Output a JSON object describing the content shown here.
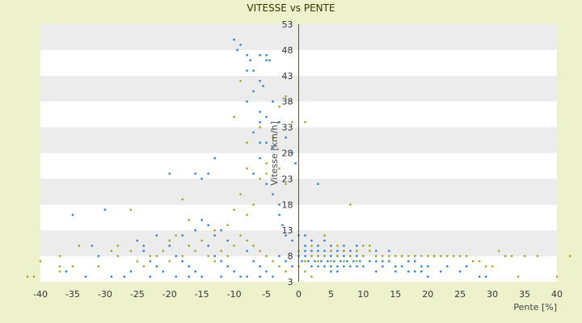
{
  "chart_data": {
    "type": "scatter",
    "title": "VITESSE vs PENTE",
    "xlabel": "Pente [%]",
    "ylabel": "Vitesse [km/h]",
    "xlim": [
      -40,
      40
    ],
    "ylim": [
      3,
      53
    ],
    "x_ticks": [
      -40,
      -35,
      -30,
      -25,
      -20,
      -15,
      -10,
      -5,
      0,
      5,
      10,
      15,
      20,
      25,
      30,
      35,
      40
    ],
    "y_ticks": [
      3,
      8,
      13,
      18,
      23,
      28,
      33,
      38,
      43,
      48,
      53
    ],
    "grid": "alternating horizontal bands",
    "legend": "none",
    "series": [
      {
        "color": "#2a7fd4",
        "points": [
          [
            -10,
            50
          ],
          [
            -9,
            49
          ],
          [
            -9.5,
            48
          ],
          [
            -8,
            47
          ],
          [
            -8,
            44
          ],
          [
            -7.5,
            46
          ],
          [
            -7,
            44
          ],
          [
            -6,
            47
          ],
          [
            -5,
            47
          ],
          [
            -5,
            46
          ],
          [
            -4.5,
            46
          ],
          [
            -6,
            42
          ],
          [
            -5.5,
            41
          ],
          [
            -7,
            40
          ],
          [
            -8,
            38
          ],
          [
            -6,
            36
          ],
          [
            -5,
            35
          ],
          [
            -6,
            34
          ],
          [
            -7,
            32
          ],
          [
            -5,
            30
          ],
          [
            -4,
            29
          ],
          [
            -6,
            27
          ],
          [
            -7,
            24
          ],
          [
            -5,
            22
          ],
          [
            -4,
            20
          ],
          [
            -3,
            18
          ],
          [
            -3,
            16
          ],
          [
            -2.5,
            14
          ],
          [
            -2,
            12
          ],
          [
            -1,
            11
          ],
          [
            -6,
            30
          ],
          [
            -4,
            38
          ],
          [
            -3,
            34
          ],
          [
            -2,
            31
          ],
          [
            -1,
            28
          ],
          [
            -0.5,
            26
          ],
          [
            -13,
            27
          ],
          [
            -16,
            24
          ],
          [
            -15,
            23
          ],
          [
            -14,
            24
          ],
          [
            -20,
            24
          ],
          [
            -35,
            16
          ],
          [
            -30,
            17
          ],
          [
            -32,
            10
          ],
          [
            -31,
            8
          ],
          [
            -36,
            5
          ],
          [
            -33,
            4
          ],
          [
            -25,
            11
          ],
          [
            -24,
            9
          ],
          [
            -23,
            7
          ],
          [
            -22,
            6
          ],
          [
            -21,
            5
          ],
          [
            -20,
            10
          ],
          [
            -19,
            8
          ],
          [
            -18,
            7
          ],
          [
            -17,
            6
          ],
          [
            -16,
            5
          ],
          [
            -15,
            4
          ],
          [
            -14,
            10
          ],
          [
            -13,
            8
          ],
          [
            -12,
            7
          ],
          [
            -11,
            6
          ],
          [
            -10,
            5
          ],
          [
            -9,
            4
          ],
          [
            -8,
            9
          ],
          [
            -7,
            7
          ],
          [
            -6,
            6
          ],
          [
            -5,
            5
          ],
          [
            -4,
            4
          ],
          [
            -3,
            8
          ],
          [
            -2,
            7
          ],
          [
            -1,
            6
          ],
          [
            -15,
            15
          ],
          [
            -14,
            14
          ],
          [
            -13,
            12
          ],
          [
            -12,
            13
          ],
          [
            -11,
            11
          ],
          [
            -16,
            13
          ],
          [
            -18,
            12
          ],
          [
            -22,
            12
          ],
          [
            -24,
            10
          ],
          [
            -26,
            5
          ],
          [
            -27,
            4
          ],
          [
            -29,
            4
          ],
          [
            -23,
            4
          ],
          [
            -19,
            4
          ],
          [
            -17,
            4
          ],
          [
            -12,
            4
          ],
          [
            -8,
            4
          ],
          [
            -6,
            4
          ],
          [
            0,
            8
          ],
          [
            0.5,
            7
          ],
          [
            1,
            8
          ],
          [
            1.5,
            7
          ],
          [
            2,
            8
          ],
          [
            2.5,
            7
          ],
          [
            3,
            8
          ],
          [
            3.5,
            7
          ],
          [
            4,
            8
          ],
          [
            4.5,
            7
          ],
          [
            5,
            8
          ],
          [
            5.5,
            7
          ],
          [
            6,
            8
          ],
          [
            6.5,
            7
          ],
          [
            7,
            8
          ],
          [
            7.5,
            7
          ],
          [
            8,
            8
          ],
          [
            8.5,
            7
          ],
          [
            9,
            8
          ],
          [
            9.5,
            7
          ],
          [
            10,
            8
          ],
          [
            1,
            9
          ],
          [
            2,
            9
          ],
          [
            3,
            9
          ],
          [
            4,
            9
          ],
          [
            5,
            9
          ],
          [
            6,
            9
          ],
          [
            7,
            9
          ],
          [
            8,
            9
          ],
          [
            9,
            9
          ],
          [
            2,
            6
          ],
          [
            3,
            6
          ],
          [
            4,
            6
          ],
          [
            5,
            6
          ],
          [
            6,
            6
          ],
          [
            7,
            6
          ],
          [
            8,
            6
          ],
          [
            9,
            6
          ],
          [
            10,
            6
          ],
          [
            11,
            7
          ],
          [
            12,
            7
          ],
          [
            13,
            7
          ],
          [
            14,
            7
          ],
          [
            15,
            6
          ],
          [
            16,
            6
          ],
          [
            17,
            7
          ],
          [
            18,
            7
          ],
          [
            19,
            6
          ],
          [
            20,
            6
          ],
          [
            1,
            10
          ],
          [
            3,
            10
          ],
          [
            5,
            10
          ],
          [
            7,
            10
          ],
          [
            9,
            10
          ],
          [
            3,
            22
          ],
          [
            0,
            12
          ],
          [
            1,
            12
          ],
          [
            2,
            11
          ],
          [
            4,
            11
          ],
          [
            5,
            5
          ],
          [
            6,
            5
          ],
          [
            12,
            5
          ],
          [
            15,
            5
          ],
          [
            18,
            5
          ],
          [
            20,
            4
          ],
          [
            22,
            5
          ],
          [
            25,
            5
          ],
          [
            28,
            4
          ],
          [
            29,
            4
          ],
          [
            12,
            9
          ],
          [
            14,
            9
          ],
          [
            16,
            8
          ],
          [
            18,
            8
          ],
          [
            21,
            8
          ],
          [
            13,
            6
          ],
          [
            17,
            5
          ],
          [
            19,
            5
          ],
          [
            23,
            6
          ],
          [
            26,
            6
          ]
        ]
      },
      {
        "color": "#a3a81a",
        "points": [
          [
            -10,
            35
          ],
          [
            -9,
            42
          ],
          [
            -8,
            30
          ],
          [
            -8,
            25
          ],
          [
            -9,
            20
          ],
          [
            -10,
            17
          ],
          [
            -6,
            33
          ],
          [
            -5,
            26
          ],
          [
            -4,
            31
          ],
          [
            -3,
            37
          ],
          [
            -2,
            39
          ],
          [
            -1,
            34
          ],
          [
            1,
            34
          ],
          [
            -6,
            23
          ],
          [
            -5,
            24
          ],
          [
            -3,
            25
          ],
          [
            -2,
            22
          ],
          [
            -7,
            18
          ],
          [
            -8,
            16
          ],
          [
            -11,
            14
          ],
          [
            -13,
            13
          ],
          [
            -15,
            11
          ],
          [
            -17,
            10
          ],
          [
            -18,
            19
          ],
          [
            -17,
            15
          ],
          [
            -19,
            12
          ],
          [
            -20,
            11
          ],
          [
            -21,
            9
          ],
          [
            -23,
            8
          ],
          [
            -25,
            7
          ],
          [
            -26,
            17
          ],
          [
            -28,
            10
          ],
          [
            -29,
            9
          ],
          [
            -31,
            6
          ],
          [
            -34,
            10
          ],
          [
            -35,
            6
          ],
          [
            -37,
            8
          ],
          [
            -37,
            5
          ],
          [
            -41,
            4
          ],
          [
            -42,
            4
          ],
          [
            -37,
            6
          ],
          [
            -40,
            7
          ],
          [
            -9,
            12
          ],
          [
            -8,
            11
          ],
          [
            -7,
            10
          ],
          [
            -6,
            9
          ],
          [
            -5,
            8
          ],
          [
            -4,
            7
          ],
          [
            -3,
            6
          ],
          [
            -2,
            5
          ],
          [
            -10,
            10
          ],
          [
            -11,
            8
          ],
          [
            -12,
            9
          ],
          [
            -13,
            7
          ],
          [
            -14,
            8
          ],
          [
            -16,
            9
          ],
          [
            -18,
            8
          ],
          [
            -20,
            7
          ],
          [
            -22,
            8
          ],
          [
            -24,
            6
          ],
          [
            -26,
            9
          ],
          [
            -28,
            8
          ],
          [
            1,
            7
          ],
          [
            2,
            8
          ],
          [
            3,
            7
          ],
          [
            4,
            8
          ],
          [
            5,
            7
          ],
          [
            6,
            8
          ],
          [
            7,
            7
          ],
          [
            8,
            8
          ],
          [
            9,
            7
          ],
          [
            10,
            8
          ],
          [
            11,
            9
          ],
          [
            12,
            8
          ],
          [
            13,
            8
          ],
          [
            14,
            8
          ],
          [
            15,
            8
          ],
          [
            16,
            8
          ],
          [
            17,
            8
          ],
          [
            18,
            8
          ],
          [
            19,
            8
          ],
          [
            20,
            8
          ],
          [
            21,
            8
          ],
          [
            22,
            8
          ],
          [
            23,
            8
          ],
          [
            24,
            8
          ],
          [
            25,
            8
          ],
          [
            26,
            8
          ],
          [
            27,
            7
          ],
          [
            28,
            7
          ],
          [
            29,
            6
          ],
          [
            30,
            6
          ],
          [
            31,
            9
          ],
          [
            32,
            8
          ],
          [
            33,
            8
          ],
          [
            35,
            8
          ],
          [
            37,
            8
          ],
          [
            40,
            4
          ],
          [
            42,
            8
          ],
          [
            34,
            4
          ],
          [
            8,
            18
          ],
          [
            5,
            9
          ],
          [
            7,
            9
          ],
          [
            9,
            9
          ],
          [
            10,
            10
          ],
          [
            11,
            10
          ],
          [
            6,
            10
          ],
          [
            4,
            12
          ],
          [
            2,
            10
          ],
          [
            3,
            8
          ],
          [
            0,
            9
          ],
          [
            1,
            5
          ],
          [
            2,
            4
          ],
          [
            0,
            6
          ]
        ]
      }
    ]
  }
}
